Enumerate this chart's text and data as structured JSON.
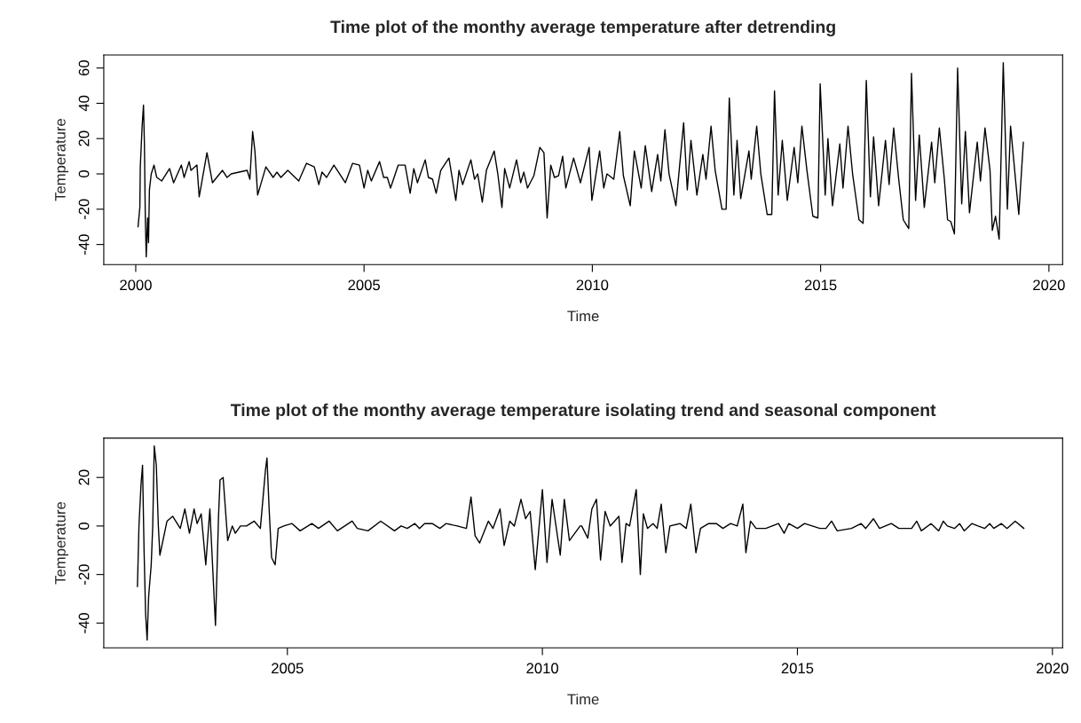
{
  "chart_data": [
    {
      "type": "line",
      "title": "Time plot of the monthy average temperature after detrending",
      "xlabel": "Time",
      "ylabel": "Temperature",
      "xlim": [
        1999.3,
        2020.3
      ],
      "ylim": [
        -51.4,
        67.4
      ],
      "xticks": [
        2000,
        2005,
        2010,
        2015,
        2020
      ],
      "yticks": [
        -40,
        -20,
        0,
        20,
        40,
        60
      ],
      "series": [
        {
          "color": "#000000",
          "x": [
            2000.05,
            2000.09,
            2000.1,
            2000.14,
            2000.17,
            2000.19,
            2000.21,
            2000.23,
            2000.26,
            2000.28,
            2000.3,
            2000.34,
            2000.4,
            2000.46,
            2000.57,
            2000.74,
            2000.83,
            2001.0,
            2001.06,
            2001.17,
            2001.21,
            2001.34,
            2001.39,
            2001.56,
            2001.68,
            2001.9,
            2002.0,
            2002.09,
            2002.44,
            2002.5,
            2002.56,
            2002.61,
            2002.67,
            2002.85,
            2003.01,
            2003.09,
            2003.18,
            2003.33,
            2003.57,
            2003.74,
            2003.91,
            2004.01,
            2004.08,
            2004.18,
            2004.34,
            2004.59,
            2004.75,
            2004.9,
            2005.0,
            2005.08,
            2005.16,
            2005.34,
            2005.43,
            2005.51,
            2005.58,
            2005.75,
            2005.9,
            2006.01,
            2006.09,
            2006.17,
            2006.34,
            2006.41,
            2006.5,
            2006.58,
            2006.68,
            2006.86,
            2007.01,
            2007.08,
            2007.16,
            2007.34,
            2007.42,
            2007.49,
            2007.59,
            2007.68,
            2007.85,
            2007.93,
            2008.02,
            2008.08,
            2008.19,
            2008.34,
            2008.43,
            2008.5,
            2008.58,
            2008.72,
            2008.85,
            2008.94,
            2009.01,
            2009.09,
            2009.17,
            2009.26,
            2009.35,
            2009.42,
            2009.59,
            2009.74,
            2009.93,
            2009.99,
            2010.16,
            2010.25,
            2010.32,
            2010.47,
            2010.6,
            2010.68,
            2010.83,
            2010.92,
            2011.07,
            2011.16,
            2011.3,
            2011.43,
            2011.5,
            2011.59,
            2011.68,
            2011.83,
            2012.0,
            2012.08,
            2012.16,
            2012.29,
            2012.42,
            2012.49,
            2012.6,
            2012.69,
            2012.84,
            2012.93,
            2013.0,
            2013.05,
            2013.1,
            2013.17,
            2013.25,
            2013.43,
            2013.48,
            2013.6,
            2013.69,
            2013.83,
            2013.93,
            2013.99,
            2014.07,
            2014.16,
            2014.27,
            2014.42,
            2014.5,
            2014.59,
            2014.7,
            2014.83,
            2014.94,
            2014.99,
            2015.1,
            2015.16,
            2015.26,
            2015.42,
            2015.49,
            2015.6,
            2015.7,
            2015.84,
            2015.93,
            2016.0,
            2016.09,
            2016.16,
            2016.27,
            2016.42,
            2016.5,
            2016.6,
            2016.71,
            2016.81,
            2016.93,
            2016.99,
            2017.08,
            2017.16,
            2017.27,
            2017.43,
            2017.5,
            2017.6,
            2017.71,
            2017.78,
            2017.85,
            2017.93,
            2018.0,
            2018.09,
            2018.17,
            2018.26,
            2018.43,
            2018.5,
            2018.6,
            2018.71,
            2018.76,
            2018.83,
            2018.91,
            2019.0,
            2019.09,
            2019.16,
            2019.34,
            2019.44
          ],
          "values": [
            -30,
            -19,
            4,
            27,
            39,
            17,
            -25,
            -47,
            -25,
            -39,
            -9,
            0,
            5,
            -2,
            -4,
            3,
            -5,
            5,
            -2,
            7,
            2,
            5,
            -13,
            12,
            -5,
            2,
            -2,
            0,
            2,
            -3,
            24,
            13,
            -12,
            4,
            -2,
            1,
            -2,
            2,
            -4,
            6,
            4,
            -6,
            1,
            -2,
            5,
            -5,
            6,
            5,
            -8,
            2,
            -4,
            7,
            -2,
            -2,
            -8,
            5,
            5,
            -11,
            3,
            -5,
            8,
            -2,
            -3,
            -11,
            2,
            9,
            -15,
            2,
            -6,
            8,
            -3,
            0,
            -16,
            2,
            13,
            0,
            -19,
            3,
            -8,
            8,
            -5,
            1,
            -8,
            -1,
            15,
            12,
            -25,
            5,
            -2,
            -1,
            10,
            -8,
            9,
            -5,
            15,
            -15,
            13,
            -8,
            0,
            -3,
            24,
            -1,
            -18,
            13,
            -8,
            16,
            -10,
            11,
            -4,
            25,
            0,
            -18,
            29,
            -9,
            19,
            -12,
            11,
            -3,
            27,
            2,
            -20,
            -20,
            43,
            15,
            -12,
            19,
            -14,
            13,
            -3,
            27,
            0,
            -23,
            -23,
            47,
            -12,
            19,
            -15,
            15,
            -5,
            27,
            2,
            -24,
            -25,
            51,
            -12,
            20,
            -18,
            17,
            -8,
            27,
            0,
            -26,
            -28,
            53,
            -13,
            21,
            -18,
            19,
            -6,
            26,
            -3,
            -26,
            -31,
            57,
            -15,
            22,
            -19,
            18,
            -5,
            26,
            -3,
            -26,
            -27,
            -34,
            60,
            -17,
            24,
            -22,
            18,
            -4,
            26,
            2,
            -32,
            -24,
            -37,
            63,
            -20,
            27,
            -23,
            18
          ]
        }
      ]
    },
    {
      "type": "line",
      "title": "Time plot of the monthy average temperature isolating trend and seasonal component",
      "xlabel": "Time",
      "ylabel": "Temperature",
      "xlim": [
        2001.4,
        2020.2
      ],
      "ylim": [
        -50.2,
        36.2
      ],
      "xticks": [
        2005,
        2010,
        2015,
        2020
      ],
      "yticks": [
        -40,
        -20,
        0,
        20
      ],
      "series": [
        {
          "color": "#000000",
          "x": [
            2002.06,
            2002.09,
            2002.13,
            2002.16,
            2002.19,
            2002.22,
            2002.25,
            2002.28,
            2002.33,
            2002.36,
            2002.39,
            2002.43,
            2002.47,
            2002.5,
            2002.64,
            2002.75,
            2002.9,
            2002.99,
            2003.08,
            2003.17,
            2003.23,
            2003.31,
            2003.4,
            2003.48,
            2003.59,
            2003.65,
            2003.68,
            2003.74,
            2003.83,
            2003.92,
            2003.98,
            2004.08,
            2004.2,
            2004.35,
            2004.47,
            2004.52,
            2004.57,
            2004.6,
            2004.64,
            2004.69,
            2004.76,
            2004.82,
            2004.93,
            2005.09,
            2005.25,
            2005.48,
            2005.61,
            2005.82,
            2005.98,
            2006.27,
            2006.37,
            2006.58,
            2006.83,
            2007.1,
            2007.23,
            2007.35,
            2007.5,
            2007.59,
            2007.69,
            2007.84,
            2007.99,
            2008.11,
            2008.33,
            2008.51,
            2008.6,
            2008.68,
            2008.77,
            2008.94,
            2009.03,
            2009.17,
            2009.25,
            2009.36,
            2009.45,
            2009.58,
            2009.67,
            2009.76,
            2009.86,
            2010.0,
            2010.09,
            2010.19,
            2010.35,
            2010.43,
            2010.53,
            2010.74,
            2010.77,
            2010.89,
            2010.97,
            2011.06,
            2011.14,
            2011.23,
            2011.33,
            2011.5,
            2011.56,
            2011.64,
            2011.71,
            2011.84,
            2011.92,
            2011.98,
            2012.06,
            2012.17,
            2012.25,
            2012.33,
            2012.42,
            2012.5,
            2012.7,
            2012.82,
            2012.91,
            2013.01,
            2013.1,
            2013.26,
            2013.41,
            2013.54,
            2013.69,
            2013.82,
            2013.93,
            2013.99,
            2014.08,
            2014.19,
            2014.38,
            2014.63,
            2014.74,
            2014.83,
            2015.0,
            2015.14,
            2015.44,
            2015.56,
            2015.67,
            2015.78,
            2016.06,
            2016.25,
            2016.34,
            2016.49,
            2016.61,
            2016.84,
            2016.99,
            2017.24,
            2017.34,
            2017.43,
            2017.62,
            2017.77,
            2017.86,
            2017.94,
            2018.08,
            2018.18,
            2018.27,
            2018.42,
            2018.54,
            2018.67,
            2018.77,
            2018.85,
            2019.0,
            2019.11,
            2019.27,
            2019.44
          ],
          "values": [
            -25,
            0,
            17,
            25,
            -10,
            -36,
            -47,
            -29,
            -16,
            0,
            33,
            25,
            0,
            -12,
            2,
            4,
            -1,
            7,
            -3,
            7,
            1,
            5,
            -16,
            7,
            -41,
            4,
            19,
            20,
            -6,
            0,
            -3,
            0,
            0,
            2,
            -1,
            11,
            23,
            28,
            8,
            -13,
            -16,
            -1,
            0,
            1,
            -2,
            1,
            -1,
            2,
            -2,
            2,
            -1,
            -2,
            2,
            -2,
            0,
            -1,
            1,
            -1,
            1,
            1,
            -1,
            1,
            0,
            -1,
            12,
            -4,
            -7,
            2,
            -1,
            7,
            -8,
            2,
            0,
            11,
            3,
            6,
            -18,
            15,
            -15,
            11,
            -12,
            11,
            -6,
            0,
            0,
            -5,
            7,
            11,
            -14,
            6,
            0,
            4,
            -15,
            1,
            0,
            15,
            -20,
            5,
            -1,
            1,
            -1,
            9,
            -11,
            0,
            1,
            -1,
            9,
            -11,
            -1,
            1,
            1,
            -1,
            1,
            0,
            9,
            -11,
            2,
            -1,
            -1,
            1,
            -3,
            1,
            -1,
            1,
            -1,
            -1,
            2,
            -2,
            -1,
            1,
            -1,
            3,
            -1,
            1,
            -1,
            -1,
            2,
            -2,
            1,
            -2,
            2,
            0,
            -1,
            1,
            -2,
            1,
            0,
            -1,
            1,
            -1,
            1,
            -1,
            2,
            -1
          ]
        }
      ]
    }
  ]
}
